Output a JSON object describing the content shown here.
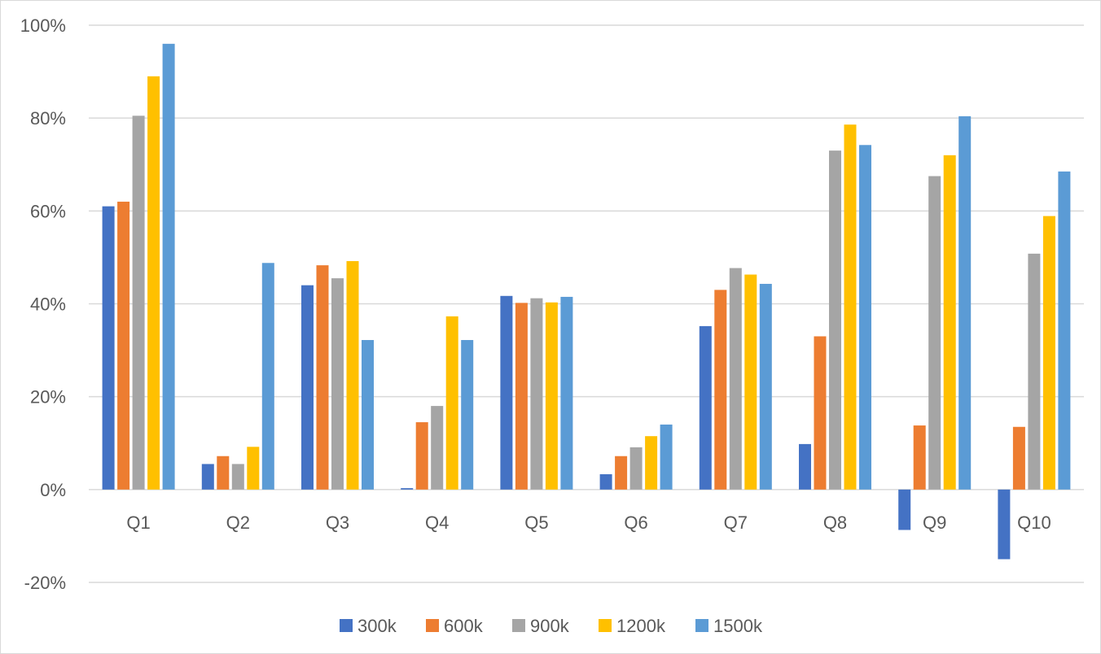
{
  "chart_data": {
    "type": "bar",
    "title": "",
    "xlabel": "",
    "ylabel": "",
    "ylim": [
      -20,
      100
    ],
    "y_ticks": [
      -20,
      0,
      20,
      40,
      60,
      80,
      100
    ],
    "y_tick_labels": [
      "-20%",
      "0%",
      "20%",
      "40%",
      "60%",
      "80%",
      "100%"
    ],
    "grid": true,
    "legend_position": "bottom",
    "categories": [
      "Q1",
      "Q2",
      "Q3",
      "Q4",
      "Q5",
      "Q6",
      "Q7",
      "Q8",
      "Q9",
      "Q10"
    ],
    "series": [
      {
        "name": "300k",
        "color": "#4472c4",
        "values": [
          61,
          5.5,
          44,
          0.3,
          41.7,
          3.3,
          35.2,
          9.8,
          -8.7,
          -15
        ]
      },
      {
        "name": "600k",
        "color": "#ed7d31",
        "values": [
          62,
          7.2,
          48.3,
          14.5,
          40.2,
          7.2,
          43,
          33,
          13.8,
          13.5
        ]
      },
      {
        "name": "900k",
        "color": "#a5a5a5",
        "values": [
          80.5,
          5.5,
          45.5,
          18,
          41.2,
          9.1,
          47.7,
          73,
          67.5,
          50.8
        ]
      },
      {
        "name": "1200k",
        "color": "#ffc000",
        "values": [
          89,
          9.2,
          49.2,
          37.3,
          40.3,
          11.5,
          46.3,
          78.6,
          72,
          58.9
        ]
      },
      {
        "name": "1500k",
        "color": "#5b9bd5",
        "values": [
          96,
          48.8,
          32.2,
          32.2,
          41.5,
          14,
          44.3,
          74.2,
          80.4,
          68.5
        ]
      }
    ]
  }
}
